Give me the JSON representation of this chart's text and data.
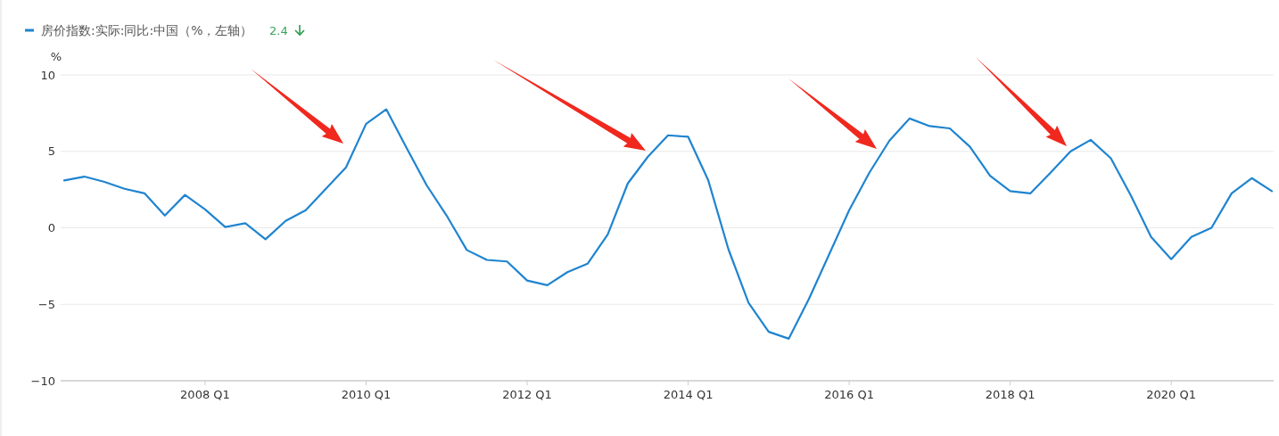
{
  "chart_data": {
    "type": "line",
    "ylabel": "%",
    "categories": [
      null,
      null,
      null,
      null,
      null,
      null,
      null,
      "2008 Q1",
      null,
      null,
      null,
      null,
      null,
      null,
      null,
      "2010 Q1",
      null,
      null,
      null,
      null,
      null,
      null,
      null,
      "2012 Q1",
      null,
      null,
      null,
      null,
      null,
      null,
      null,
      "2014 Q1",
      null,
      null,
      null,
      null,
      null,
      null,
      null,
      "2016 Q1",
      null,
      null,
      null,
      null,
      null,
      null,
      null,
      "2018 Q1",
      null,
      null,
      null,
      null,
      null,
      null,
      null,
      "2020 Q1",
      null,
      null,
      null,
      null,
      null
    ],
    "series": [
      {
        "name": "房价指数:实际:同比:中国（%，左轴）",
        "color": "#1f84d0",
        "values": [
          3.1,
          3.35,
          3.0,
          2.55,
          2.25,
          0.8,
          2.15,
          1.2,
          0.05,
          0.3,
          -0.75,
          0.45,
          1.15,
          2.55,
          3.95,
          6.8,
          7.75,
          5.25,
          2.8,
          0.8,
          -1.45,
          -2.1,
          -2.2,
          -3.45,
          -3.75,
          -2.9,
          -2.35,
          -0.45,
          2.9,
          4.65,
          6.05,
          5.95,
          3.1,
          -1.4,
          -4.9,
          -6.8,
          -7.25,
          -4.65,
          -1.75,
          1.15,
          3.6,
          5.7,
          7.15,
          6.65,
          6.5,
          5.3,
          3.4,
          2.4,
          2.25,
          3.6,
          5.0,
          5.75,
          4.55,
          2.1,
          -0.6,
          -2.05,
          -0.6,
          0.0,
          2.25,
          3.25,
          2.4
        ]
      }
    ],
    "ylim": [
      -10,
      10
    ],
    "yticks": [
      -10,
      -5,
      0,
      5,
      10
    ],
    "grid": "y",
    "legend": "top left",
    "annotations": [
      "2.4"
    ]
  }
}
